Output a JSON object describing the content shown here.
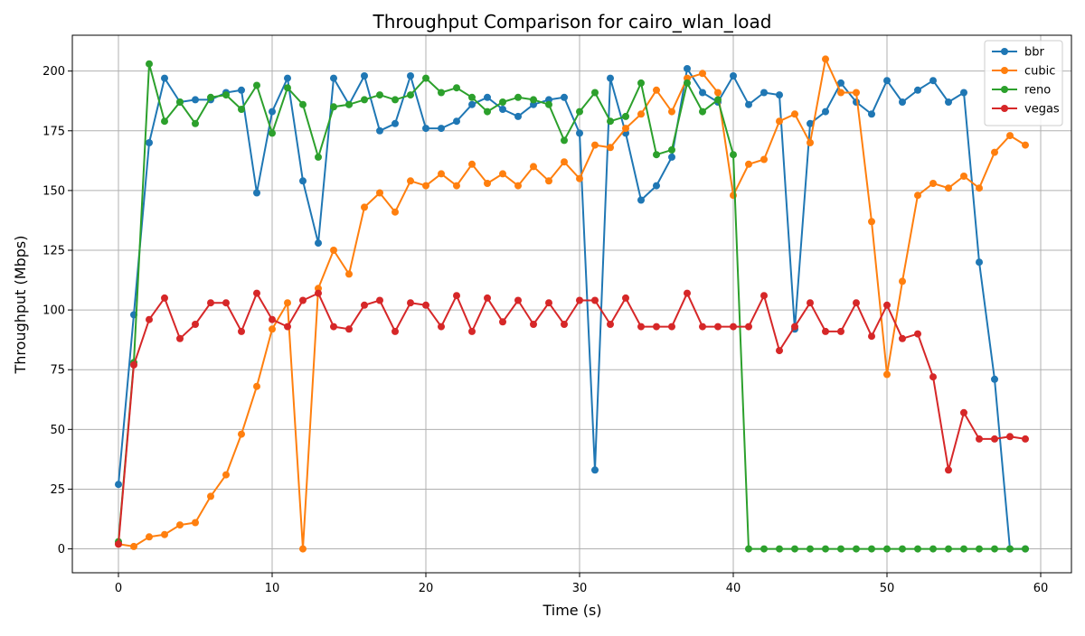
{
  "chart_data": {
    "type": "line",
    "title": "Throughput Comparison for cairo_wlan_load",
    "xlabel": "Time (s)",
    "ylabel": "Throughput (Mbps)",
    "xlim": [
      -3,
      62
    ],
    "ylim": [
      -10,
      215
    ],
    "xticks": [
      0,
      10,
      20,
      30,
      40,
      50,
      60
    ],
    "yticks": [
      0,
      25,
      50,
      75,
      100,
      125,
      150,
      175,
      200
    ],
    "grid": true,
    "legend_position": "top-right",
    "marker": "circle",
    "x": [
      0,
      1,
      2,
      3,
      4,
      5,
      6,
      7,
      8,
      9,
      10,
      11,
      12,
      13,
      14,
      15,
      16,
      17,
      18,
      19,
      20,
      21,
      22,
      23,
      24,
      25,
      26,
      27,
      28,
      29,
      30,
      31,
      32,
      33,
      34,
      35,
      36,
      37,
      38,
      39,
      40,
      41,
      42,
      43,
      44,
      45,
      46,
      47,
      48,
      49,
      50,
      51,
      52,
      53,
      54,
      55,
      56,
      57,
      58,
      59
    ],
    "series": [
      {
        "name": "bbr",
        "color": "#1f77b4",
        "values": [
          27,
          98,
          170,
          197,
          187,
          188,
          188,
          191,
          192,
          149,
          183,
          197,
          154,
          128,
          197,
          186,
          198,
          175,
          178,
          198,
          176,
          176,
          179,
          186,
          189,
          184,
          181,
          186,
          188,
          189,
          174,
          33,
          197,
          174,
          146,
          152,
          164,
          201,
          191,
          187,
          198,
          186,
          191,
          190,
          92,
          178,
          183,
          195,
          187,
          182,
          196,
          187,
          192,
          196,
          187,
          191,
          120,
          71,
          0,
          0
        ]
      },
      {
        "name": "cubic",
        "color": "#ff7f0e",
        "values": [
          2,
          1,
          5,
          6,
          10,
          11,
          22,
          31,
          48,
          68,
          92,
          103,
          0,
          109,
          125,
          115,
          143,
          149,
          141,
          154,
          152,
          157,
          152,
          161,
          153,
          157,
          152,
          160,
          154,
          162,
          155,
          169,
          168,
          176,
          182,
          192,
          183,
          197,
          199,
          191,
          148,
          161,
          163,
          179,
          182,
          170,
          205,
          191,
          191,
          137,
          73,
          112,
          148,
          153,
          151,
          156,
          151,
          166,
          173,
          169
        ]
      },
      {
        "name": "reno",
        "color": "#2ca02c",
        "values": [
          3,
          78,
          203,
          179,
          187,
          178,
          189,
          190,
          184,
          194,
          174,
          193,
          186,
          164,
          185,
          186,
          188,
          190,
          188,
          190,
          197,
          191,
          193,
          189,
          183,
          187,
          189,
          188,
          186,
          171,
          183,
          191,
          179,
          181,
          195,
          165,
          167,
          195,
          183,
          188,
          165,
          0,
          0,
          0,
          0,
          0,
          0,
          0,
          0,
          0,
          0,
          0,
          0,
          0,
          0,
          0,
          0,
          0,
          0,
          0
        ]
      },
      {
        "name": "vegas",
        "color": "#d62728",
        "values": [
          2,
          77,
          96,
          105,
          88,
          94,
          103,
          103,
          91,
          107,
          96,
          93,
          104,
          107,
          93,
          92,
          102,
          104,
          91,
          103,
          102,
          93,
          106,
          91,
          105,
          95,
          104,
          94,
          103,
          94,
          104,
          104,
          94,
          105,
          93,
          93,
          93,
          107,
          93,
          93,
          93,
          93,
          106,
          83,
          93,
          103,
          91,
          91,
          103,
          89,
          102,
          88,
          90,
          72,
          33,
          57,
          46,
          46,
          47,
          46
        ]
      }
    ]
  }
}
